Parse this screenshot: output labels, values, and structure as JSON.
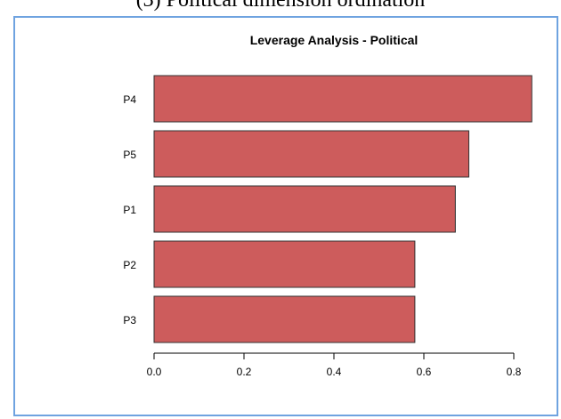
{
  "caption": "(3) Political dimension ordination",
  "chart_data": {
    "type": "bar",
    "orientation": "horizontal",
    "title": "Leverage Analysis - Political",
    "categories": [
      "P4",
      "P5",
      "P1",
      "P2",
      "P3"
    ],
    "values": [
      0.84,
      0.7,
      0.67,
      0.58,
      0.58
    ],
    "xlim": [
      0,
      0.85
    ],
    "xticks": [
      "0.0",
      "0.2",
      "0.4",
      "0.6",
      "0.8"
    ],
    "grid": false,
    "bar_color": "#cd5c5c",
    "bar_border": "#333333"
  }
}
